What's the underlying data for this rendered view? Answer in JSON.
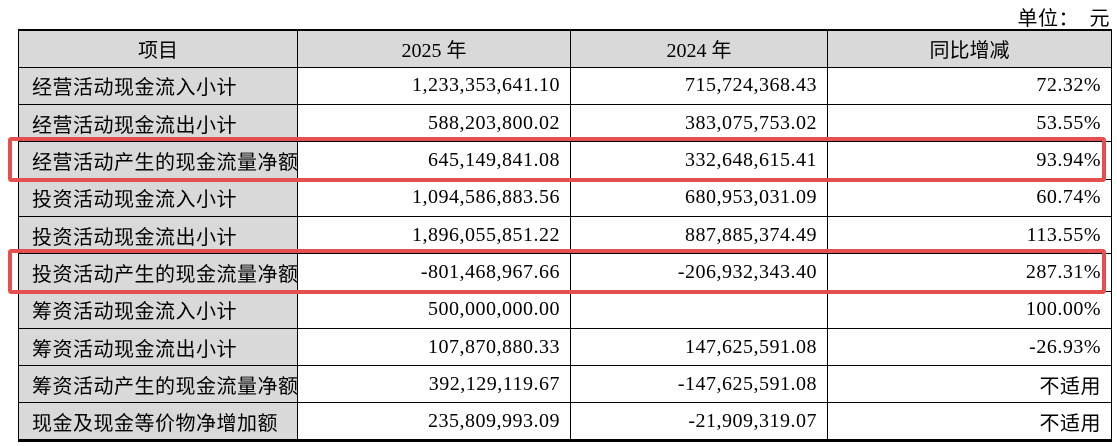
{
  "page": {
    "unit_label": "单位：　元"
  },
  "colors": {
    "header_bg": "#d9d9d9",
    "item_col_bg": "#d9d9d9",
    "highlight_red": "#e5504f",
    "border": "#000000"
  },
  "table": {
    "columns": [
      "项目",
      "2025 年",
      "2024 年",
      "同比增减"
    ],
    "rows": [
      {
        "item": "经营活动现金流入小计",
        "v2025": "1,233,353,641.10",
        "v2024": "715,724,368.43",
        "change": "72.32%",
        "highlighted": false
      },
      {
        "item": "经营活动现金流出小计",
        "v2025": "588,203,800.02",
        "v2024": "383,075,753.02",
        "change": "53.55%",
        "highlighted": false
      },
      {
        "item": "经营活动产生的现金流量净额",
        "v2025": "645,149,841.08",
        "v2024": "332,648,615.41",
        "change": "93.94%",
        "highlighted": true
      },
      {
        "item": "投资活动现金流入小计",
        "v2025": "1,094,586,883.56",
        "v2024": "680,953,031.09",
        "change": "60.74%",
        "highlighted": false
      },
      {
        "item": "投资活动现金流出小计",
        "v2025": "1,896,055,851.22",
        "v2024": "887,885,374.49",
        "change": "113.55%",
        "highlighted": false
      },
      {
        "item": "投资活动产生的现金流量净额",
        "v2025": "-801,468,967.66",
        "v2024": "-206,932,343.40",
        "change": "287.31%",
        "highlighted": true
      },
      {
        "item": "筹资活动现金流入小计",
        "v2025": "500,000,000.00",
        "v2024": "",
        "change": "100.00%",
        "highlighted": false
      },
      {
        "item": "筹资活动现金流出小计",
        "v2025": "107,870,880.33",
        "v2024": "147,625,591.08",
        "change": "-26.93%",
        "highlighted": false
      },
      {
        "item": "筹资活动产生的现金流量净额",
        "v2025": "392,129,119.67",
        "v2024": "-147,625,591.08",
        "change": "不适用",
        "highlighted": false
      },
      {
        "item": "现金及现金等价物净增加额",
        "v2025": "235,809,993.09",
        "v2024": "-21,909,319.07",
        "change": "不适用",
        "highlighted": false
      }
    ]
  }
}
